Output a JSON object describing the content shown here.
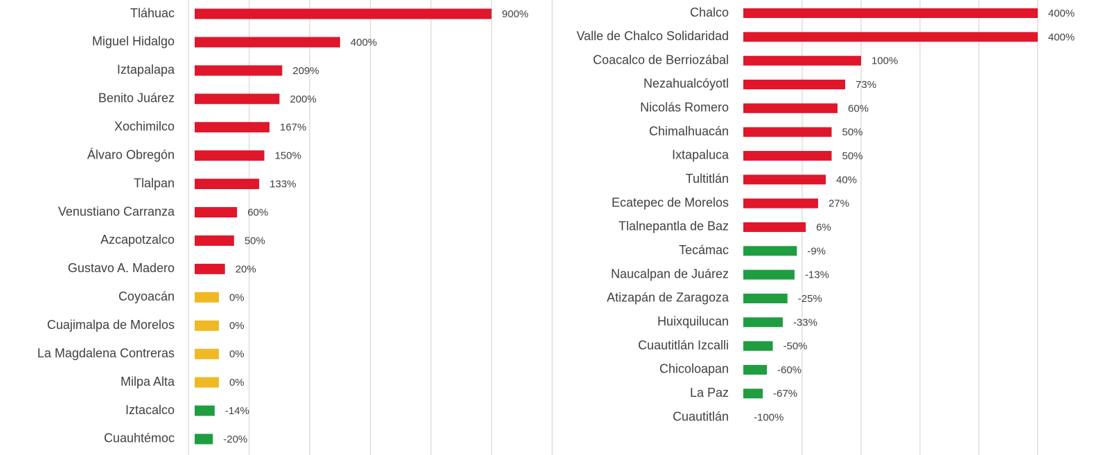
{
  "chart_data": [
    {
      "type": "bar",
      "orientation": "horizontal",
      "categories": [
        "Tláhuac",
        "Miguel Hidalgo",
        "Iztapalapa",
        "Benito Juárez",
        "Xochimilco",
        "Álvaro Obregón",
        "Tlalpan",
        "Venustiano Carranza",
        "Azcapotzalco",
        "Gustavo A. Madero",
        "Coyoacán",
        "Cuajimalpa de Morelos",
        "La Magdalena Contreras",
        "Milpa Alta",
        "Iztacalco",
        "Cuauhtémoc"
      ],
      "values": [
        900,
        400,
        209,
        200,
        167,
        150,
        133,
        60,
        50,
        20,
        0,
        0,
        0,
        0,
        -14,
        -20
      ],
      "value_labels": [
        "900%",
        "400%",
        "209%",
        "200%",
        "167%",
        "150%",
        "133%",
        "60%",
        "50%",
        "20%",
        "0%",
        "0%",
        "0%",
        "0%",
        "-14%",
        "-20%"
      ],
      "colors": [
        "#e0162b",
        "#e0162b",
        "#e0162b",
        "#e0162b",
        "#e0162b",
        "#e0162b",
        "#e0162b",
        "#e0162b",
        "#e0162b",
        "#e0162b",
        "#f0b823",
        "#f0b823",
        "#f0b823",
        "#f0b823",
        "#1e9e40",
        "#1e9e40"
      ],
      "xlim": [
        -80,
        1100
      ],
      "xticks": [
        100,
        300,
        500,
        700,
        900,
        1100
      ],
      "grid": true
    },
    {
      "type": "bar",
      "orientation": "horizontal",
      "categories": [
        "Chalco",
        "Valle de Chalco Solidaridad",
        "Coacalco de Berriozábal",
        "Nezahualcóyotl",
        "Nicolás Romero",
        "Chimalhuacán",
        "Ixtapaluca",
        "Tultitlán",
        "Ecatepec de Morelos",
        "Tlalnepantla de Baz",
        "Tecámac",
        "Naucalpan de Juárez",
        "Atizapán de Zaragoza",
        "Huixquilucan",
        "Cuautitlán Izcalli",
        "Chicoloapan",
        "La Paz",
        "Cuautitlán"
      ],
      "values": [
        400,
        400,
        100,
        73,
        60,
        50,
        50,
        40,
        27,
        6,
        -9,
        -13,
        -25,
        -33,
        -50,
        -60,
        -67,
        -100
      ],
      "value_labels": [
        "400%",
        "400%",
        "100%",
        "73%",
        "60%",
        "50%",
        "50%",
        "40%",
        "27%",
        "6%",
        "-9%",
        "-13%",
        "-25%",
        "-33%",
        "-50%",
        "-60%",
        "-67%",
        "-100%"
      ],
      "colors": [
        "#e0162b",
        "#e0162b",
        "#e0162b",
        "#e0162b",
        "#e0162b",
        "#e0162b",
        "#e0162b",
        "#e0162b",
        "#e0162b",
        "#e0162b",
        "#1e9e40",
        "#1e9e40",
        "#1e9e40",
        "#1e9e40",
        "#1e9e40",
        "#1e9e40",
        "#1e9e40",
        "#1e9e40"
      ],
      "xlim": [
        -100,
        400
      ],
      "xticks": [
        0,
        100,
        200,
        300,
        400
      ],
      "grid": true
    }
  ]
}
